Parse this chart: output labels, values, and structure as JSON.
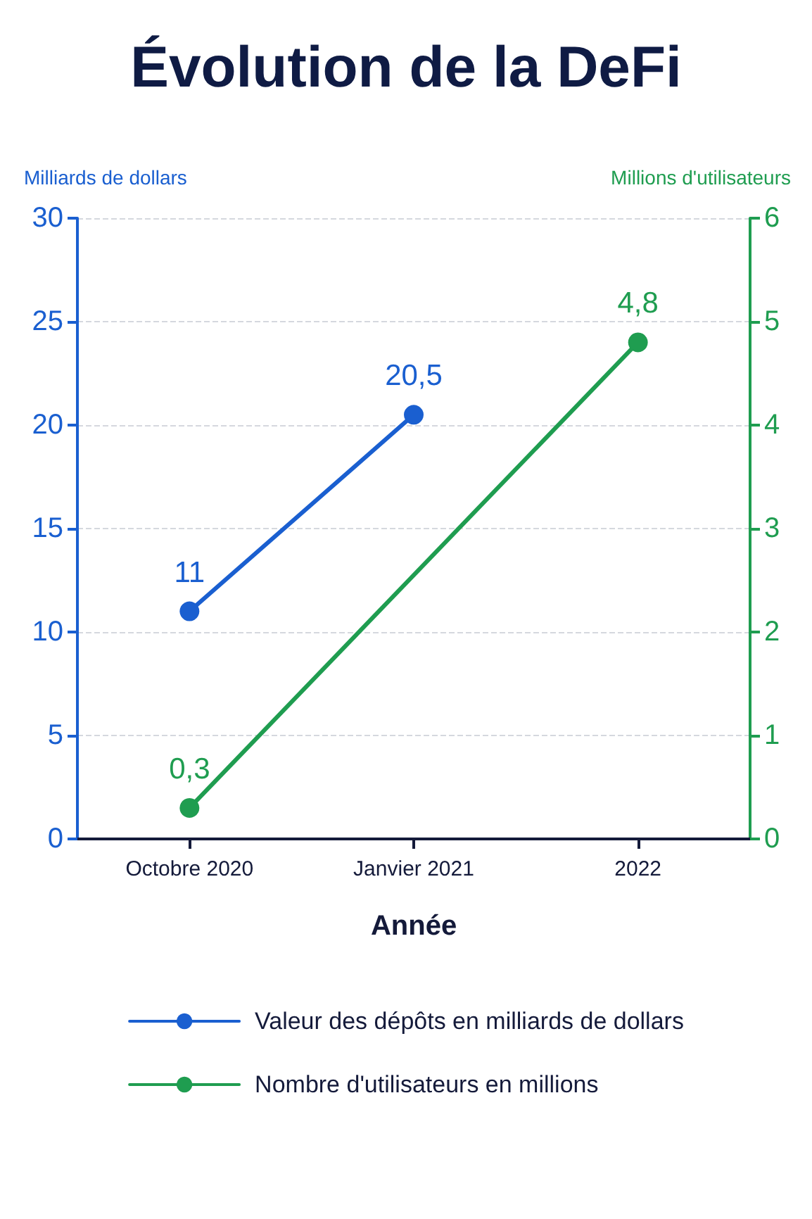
{
  "chart_data": {
    "type": "line",
    "title": "Évolution de la DeFi",
    "xlabel": "Année",
    "ylabel": "Milliards de dollars",
    "y2label": "Millions d'utilisateurs",
    "categories": [
      "Octobre 2020",
      "Janvier 2021",
      "2022"
    ],
    "series": [
      {
        "name": "Valeur des dépôts en milliards de dollars",
        "color": "#1a5fd0",
        "values": [
          11,
          20.5,
          null
        ],
        "value_labels": [
          "11",
          "20,5",
          null
        ]
      },
      {
        "name": "Nombre d'utilisateurs en millions",
        "color": "#1f9d50",
        "axis": "y2",
        "values": [
          0.3,
          null,
          4.8
        ],
        "value_labels": [
          "0,3",
          null,
          "4,8"
        ]
      }
    ],
    "ylim": [
      0,
      30
    ],
    "yticks": [
      0,
      5,
      10,
      15,
      20,
      25,
      30
    ],
    "y2lim": [
      0,
      6
    ],
    "y2ticks": [
      0,
      1,
      2,
      3,
      4,
      5,
      6
    ],
    "grid": "y",
    "legend": "bottom",
    "marker": "circle",
    "line_style": "solid"
  }
}
